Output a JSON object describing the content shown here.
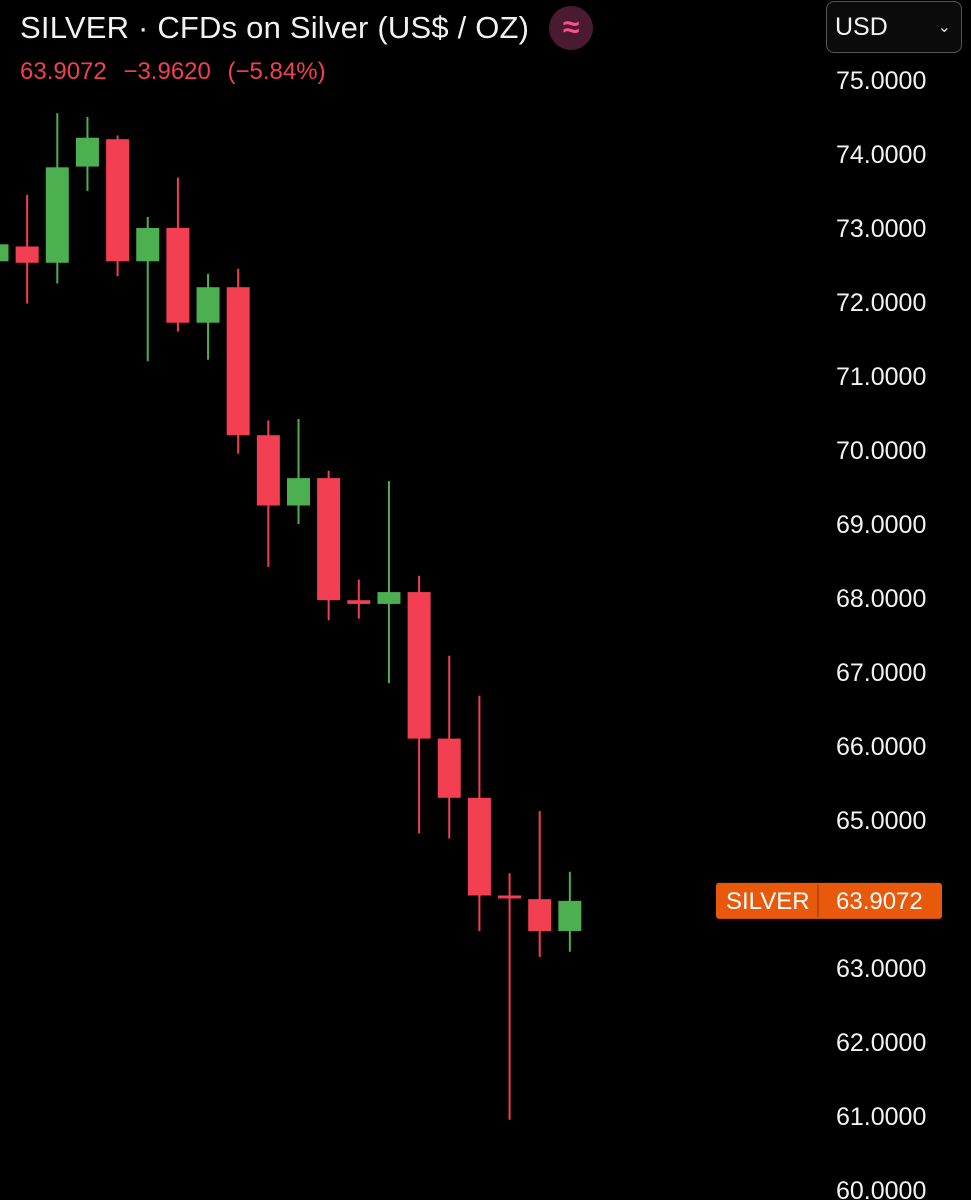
{
  "header": {
    "title": "SILVER · CFDs on Silver (US$ / OZ)",
    "logo_glyph": "≈",
    "last_price": "63.9072",
    "change": "−3.9620",
    "change_percent": "(−5.84%)"
  },
  "currency": {
    "selected": "USD",
    "chevron_icon": "chevron-down-icon"
  },
  "colors": {
    "up": "#4caf50",
    "down": "#f23f52",
    "price_tag": "#e8590c",
    "axis_text": "#f2f2f2",
    "background": "#000000"
  },
  "price_tag": {
    "symbol": "SILVER",
    "value": "63.9072"
  },
  "chart_data": {
    "type": "candlestick",
    "title": "SILVER · CFDs on Silver (US$ / OZ)",
    "grid": false,
    "ylim": [
      60,
      75
    ],
    "y_ticks": [
      "75.0000",
      "74.0000",
      "73.0000",
      "72.0000",
      "71.0000",
      "70.0000",
      "69.0000",
      "68.0000",
      "67.0000",
      "66.0000",
      "65.0000",
      "63.0000",
      "62.0000",
      "61.0000",
      "60.0000"
    ],
    "y_tick_values": [
      75,
      74,
      73,
      72,
      71,
      70,
      69,
      68,
      67,
      66,
      65,
      63,
      62,
      61,
      60
    ],
    "last_price": 63.9072,
    "candles": [
      {
        "open": 72.55,
        "high": 72.8,
        "low": 72.4,
        "close": 72.78
      },
      {
        "open": 72.75,
        "high": 73.45,
        "low": 71.98,
        "close": 72.53
      },
      {
        "open": 72.53,
        "high": 74.55,
        "low": 72.25,
        "close": 73.82
      },
      {
        "open": 73.83,
        "high": 74.5,
        "low": 73.5,
        "close": 74.22
      },
      {
        "open": 74.2,
        "high": 74.25,
        "low": 72.35,
        "close": 72.55
      },
      {
        "open": 72.55,
        "high": 73.15,
        "low": 71.2,
        "close": 73.0
      },
      {
        "open": 73.0,
        "high": 73.68,
        "low": 71.6,
        "close": 71.72
      },
      {
        "open": 71.72,
        "high": 72.38,
        "low": 71.22,
        "close": 72.2
      },
      {
        "open": 72.2,
        "high": 72.45,
        "low": 69.95,
        "close": 70.2
      },
      {
        "open": 70.2,
        "high": 70.4,
        "low": 68.42,
        "close": 69.25
      },
      {
        "open": 69.25,
        "high": 70.42,
        "low": 69.0,
        "close": 69.62
      },
      {
        "open": 69.62,
        "high": 69.72,
        "low": 67.7,
        "close": 67.97
      },
      {
        "open": 67.97,
        "high": 68.25,
        "low": 67.72,
        "close": 67.92
      },
      {
        "open": 67.92,
        "high": 69.58,
        "low": 66.85,
        "close": 68.08
      },
      {
        "open": 68.08,
        "high": 68.3,
        "low": 64.82,
        "close": 66.1
      },
      {
        "open": 66.1,
        "high": 67.22,
        "low": 64.75,
        "close": 65.3
      },
      {
        "open": 65.3,
        "high": 66.68,
        "low": 63.5,
        "close": 63.98
      },
      {
        "open": 63.98,
        "high": 64.28,
        "low": 60.95,
        "close": 63.96
      },
      {
        "open": 63.93,
        "high": 65.12,
        "low": 63.15,
        "close": 63.5
      },
      {
        "open": 63.5,
        "high": 64.3,
        "low": 63.22,
        "close": 63.9072
      }
    ]
  }
}
